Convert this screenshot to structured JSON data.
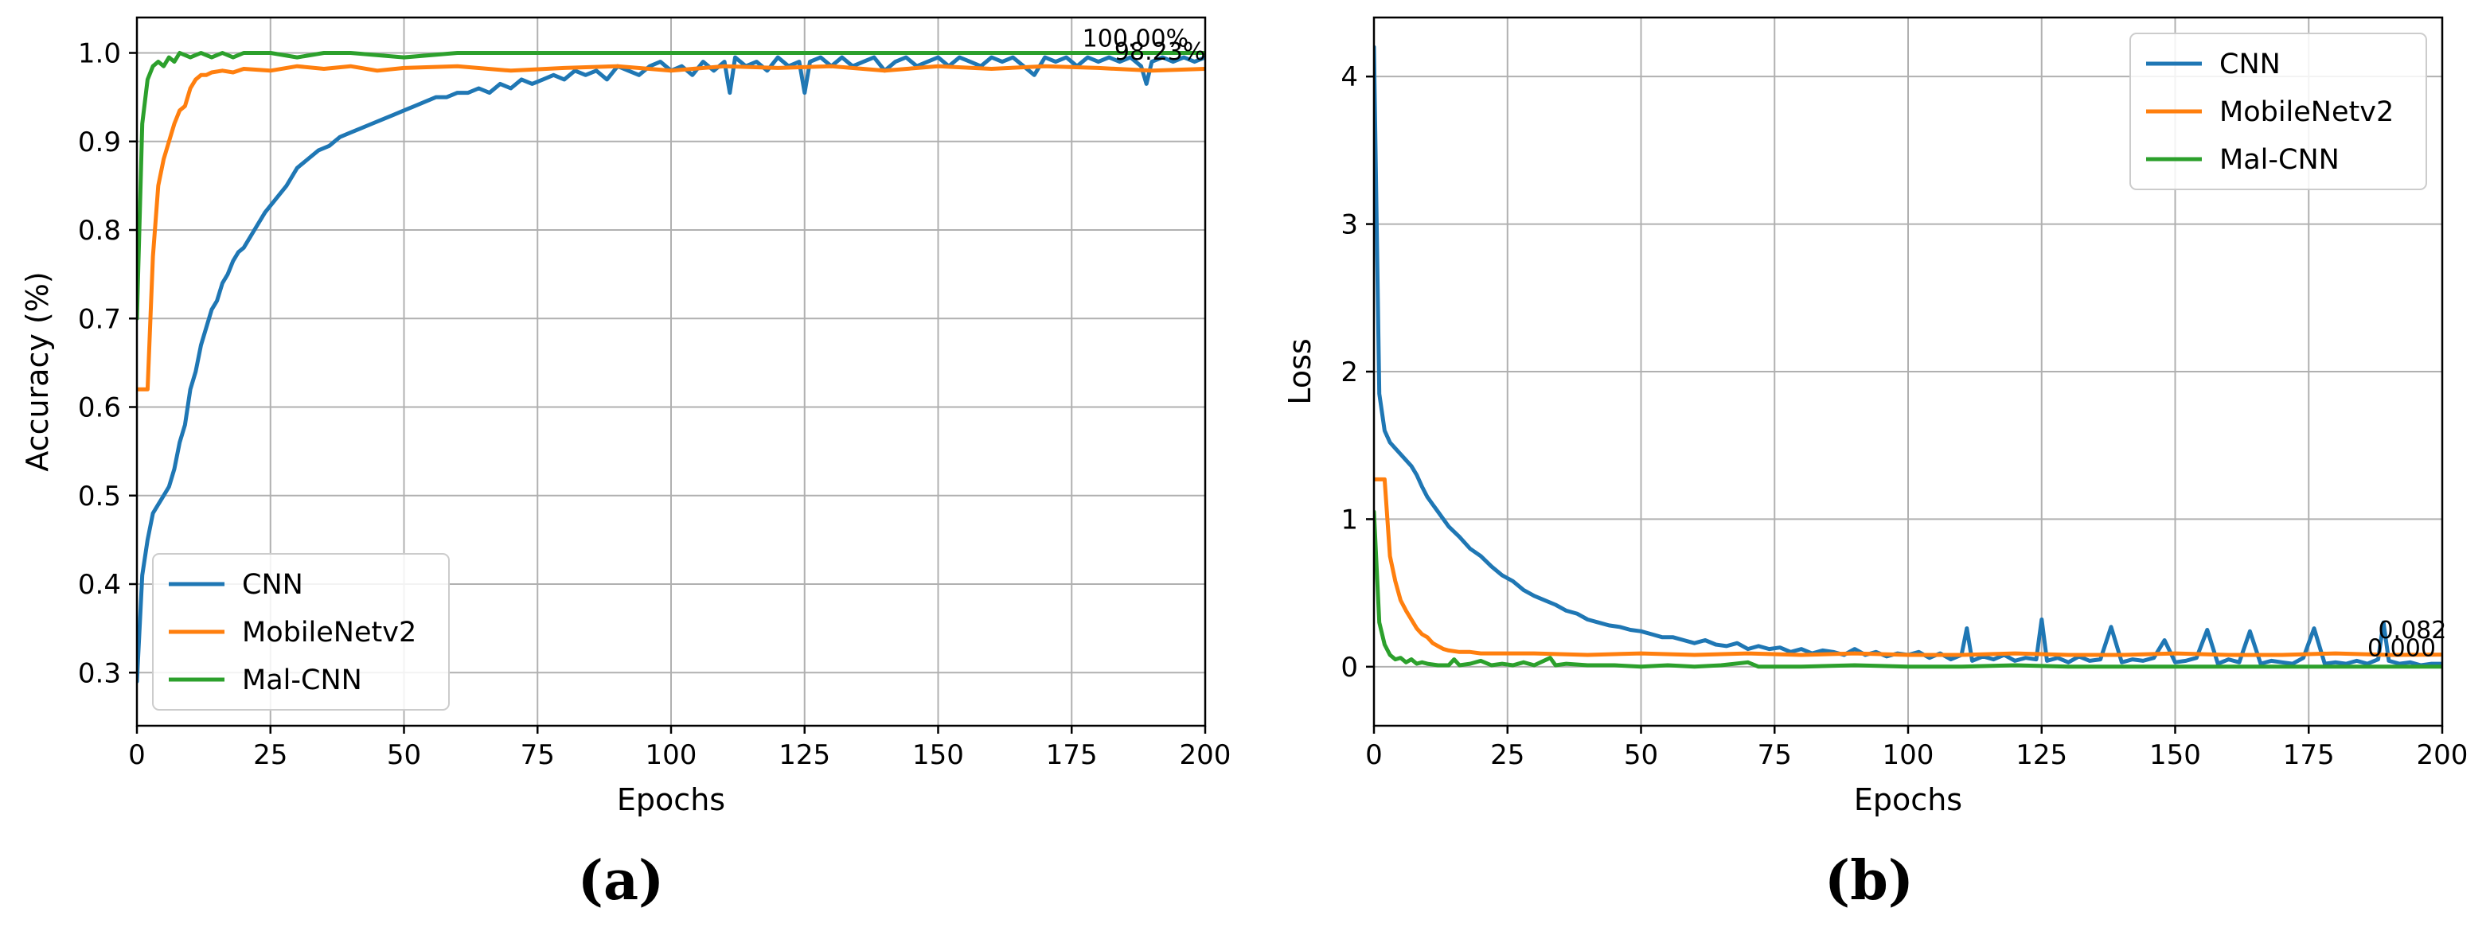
{
  "chart_data": [
    {
      "type": "line",
      "panel_label": "(a)",
      "xlabel": "Epochs",
      "ylabel": "Accuracy (%)",
      "xlim": [
        0,
        200
      ],
      "ylim": [
        0.24,
        1.04
      ],
      "xticks": [
        0,
        25,
        50,
        75,
        100,
        125,
        150,
        175,
        200
      ],
      "yticks": [
        0.3,
        0.4,
        0.5,
        0.6,
        0.7,
        0.8,
        0.9,
        1.0
      ],
      "ytick_labels": [
        "0.3",
        "0.4",
        "0.5",
        "0.6",
        "0.7",
        "0.8",
        "0.9",
        "1.0"
      ],
      "grid": true,
      "legend_position": "lower-left",
      "series": [
        {
          "name": "CNN",
          "color": "#1f77b4",
          "x": [
            0,
            1,
            2,
            3,
            4,
            5,
            6,
            7,
            8,
            9,
            10,
            11,
            12,
            13,
            14,
            15,
            16,
            17,
            18,
            19,
            20,
            22,
            24,
            26,
            28,
            30,
            32,
            34,
            36,
            38,
            40,
            42,
            44,
            46,
            48,
            50,
            52,
            54,
            56,
            58,
            60,
            62,
            64,
            66,
            68,
            70,
            72,
            74,
            76,
            78,
            80,
            82,
            84,
            86,
            88,
            90,
            92,
            94,
            96,
            98,
            100,
            102,
            104,
            106,
            108,
            110,
            111,
            112,
            114,
            116,
            118,
            120,
            122,
            124,
            125,
            126,
            128,
            130,
            132,
            134,
            136,
            138,
            140,
            142,
            144,
            146,
            148,
            150,
            152,
            154,
            156,
            158,
            160,
            162,
            164,
            166,
            168,
            170,
            172,
            174,
            176,
            178,
            180,
            182,
            184,
            186,
            188,
            189,
            190,
            192,
            194,
            196,
            198,
            200
          ],
          "y": [
            0.29,
            0.41,
            0.45,
            0.48,
            0.49,
            0.5,
            0.51,
            0.53,
            0.56,
            0.58,
            0.62,
            0.64,
            0.67,
            0.69,
            0.71,
            0.72,
            0.74,
            0.75,
            0.765,
            0.775,
            0.78,
            0.8,
            0.82,
            0.835,
            0.85,
            0.87,
            0.88,
            0.89,
            0.895,
            0.905,
            0.91,
            0.915,
            0.92,
            0.925,
            0.93,
            0.935,
            0.94,
            0.945,
            0.95,
            0.95,
            0.955,
            0.955,
            0.96,
            0.955,
            0.965,
            0.96,
            0.97,
            0.965,
            0.97,
            0.975,
            0.97,
            0.98,
            0.975,
            0.98,
            0.97,
            0.985,
            0.98,
            0.975,
            0.985,
            0.99,
            0.98,
            0.985,
            0.975,
            0.99,
            0.98,
            0.99,
            0.955,
            0.995,
            0.985,
            0.99,
            0.98,
            0.995,
            0.985,
            0.99,
            0.955,
            0.99,
            0.995,
            0.985,
            0.995,
            0.985,
            0.99,
            0.995,
            0.98,
            0.99,
            0.995,
            0.985,
            0.99,
            0.995,
            0.985,
            0.995,
            0.99,
            0.985,
            0.995,
            0.99,
            0.995,
            0.985,
            0.975,
            0.995,
            0.99,
            0.995,
            0.985,
            0.995,
            0.99,
            0.995,
            0.99,
            0.995,
            0.985,
            0.965,
            0.99,
            0.995,
            0.99,
            0.995,
            0.99,
            0.995
          ]
        },
        {
          "name": "MobileNetv2",
          "color": "#ff7f0e",
          "x": [
            0,
            2,
            3,
            4,
            5,
            6,
            7,
            8,
            9,
            10,
            11,
            12,
            13,
            14,
            16,
            18,
            20,
            25,
            30,
            35,
            40,
            45,
            50,
            60,
            70,
            80,
            90,
            100,
            110,
            120,
            130,
            140,
            150,
            160,
            170,
            180,
            190,
            200
          ],
          "y": [
            0.62,
            0.62,
            0.77,
            0.85,
            0.88,
            0.9,
            0.92,
            0.935,
            0.94,
            0.96,
            0.97,
            0.975,
            0.975,
            0.978,
            0.98,
            0.978,
            0.982,
            0.98,
            0.985,
            0.982,
            0.985,
            0.98,
            0.983,
            0.985,
            0.98,
            0.983,
            0.985,
            0.98,
            0.985,
            0.983,
            0.985,
            0.98,
            0.985,
            0.982,
            0.985,
            0.983,
            0.98,
            0.982
          ]
        },
        {
          "name": "Mal-CNN",
          "color": "#2ca02c",
          "x": [
            0,
            1,
            2,
            3,
            4,
            5,
            6,
            7,
            8,
            10,
            12,
            14,
            16,
            18,
            20,
            25,
            30,
            35,
            40,
            50,
            60,
            70,
            80,
            90,
            100,
            110,
            120,
            130,
            140,
            150,
            160,
            170,
            180,
            190,
            200
          ],
          "y": [
            0.7,
            0.92,
            0.97,
            0.985,
            0.99,
            0.985,
            0.995,
            0.99,
            1.0,
            0.995,
            1.0,
            0.995,
            1.0,
            0.995,
            1.0,
            1.0,
            0.995,
            1.0,
            1.0,
            0.995,
            1.0,
            1.0,
            1.0,
            1.0,
            1.0,
            1.0,
            1.0,
            1.0,
            1.0,
            1.0,
            1.0,
            1.0,
            1.0,
            1.0,
            1.0
          ]
        }
      ],
      "annotations": [
        {
          "text": "100.00%",
          "x": 177,
          "y": 1.0
        },
        {
          "text": "98.23%",
          "x": 183,
          "y": 0.985
        }
      ]
    },
    {
      "type": "line",
      "panel_label": "(b)",
      "xlabel": "Epochs",
      "ylabel": "Loss",
      "xlim": [
        0,
        200
      ],
      "ylim": [
        -0.4,
        4.4
      ],
      "xticks": [
        0,
        25,
        50,
        75,
        100,
        125,
        150,
        175,
        200
      ],
      "yticks": [
        0,
        1,
        2,
        3,
        4
      ],
      "ytick_labels": [
        "0",
        "1",
        "2",
        "3",
        "4"
      ],
      "grid": true,
      "legend_position": "upper-right",
      "series": [
        {
          "name": "CNN",
          "color": "#1f77b4",
          "x": [
            0,
            1,
            2,
            3,
            4,
            5,
            6,
            7,
            8,
            9,
            10,
            11,
            12,
            14,
            16,
            18,
            20,
            22,
            24,
            26,
            28,
            30,
            32,
            34,
            36,
            38,
            40,
            42,
            44,
            46,
            48,
            50,
            52,
            54,
            56,
            58,
            60,
            62,
            64,
            66,
            68,
            70,
            72,
            74,
            76,
            78,
            80,
            82,
            84,
            86,
            88,
            90,
            92,
            94,
            96,
            98,
            100,
            102,
            104,
            106,
            108,
            110,
            111,
            112,
            114,
            116,
            118,
            120,
            122,
            124,
            125,
            126,
            128,
            130,
            132,
            134,
            136,
            138,
            140,
            142,
            144,
            146,
            148,
            150,
            152,
            154,
            156,
            158,
            160,
            162,
            164,
            166,
            168,
            170,
            172,
            174,
            176,
            178,
            180,
            182,
            184,
            186,
            188,
            189,
            190,
            192,
            194,
            196,
            198,
            200
          ],
          "y": [
            4.2,
            1.85,
            1.6,
            1.52,
            1.48,
            1.44,
            1.4,
            1.36,
            1.3,
            1.22,
            1.15,
            1.1,
            1.05,
            0.95,
            0.88,
            0.8,
            0.75,
            0.68,
            0.62,
            0.58,
            0.52,
            0.48,
            0.45,
            0.42,
            0.38,
            0.36,
            0.32,
            0.3,
            0.28,
            0.27,
            0.25,
            0.24,
            0.22,
            0.2,
            0.2,
            0.18,
            0.16,
            0.18,
            0.15,
            0.14,
            0.16,
            0.12,
            0.14,
            0.12,
            0.13,
            0.1,
            0.12,
            0.09,
            0.11,
            0.1,
            0.08,
            0.12,
            0.08,
            0.1,
            0.07,
            0.09,
            0.08,
            0.1,
            0.06,
            0.09,
            0.05,
            0.08,
            0.26,
            0.04,
            0.07,
            0.05,
            0.08,
            0.04,
            0.06,
            0.05,
            0.32,
            0.04,
            0.06,
            0.03,
            0.07,
            0.04,
            0.05,
            0.27,
            0.03,
            0.05,
            0.04,
            0.06,
            0.18,
            0.03,
            0.04,
            0.06,
            0.25,
            0.02,
            0.05,
            0.03,
            0.24,
            0.02,
            0.04,
            0.03,
            0.02,
            0.06,
            0.26,
            0.02,
            0.03,
            0.02,
            0.04,
            0.02,
            0.05,
            0.3,
            0.04,
            0.02,
            0.03,
            0.01,
            0.02,
            0.02
          ]
        },
        {
          "name": "MobileNetv2",
          "color": "#ff7f0e",
          "x": [
            0,
            2,
            3,
            4,
            5,
            6,
            7,
            8,
            9,
            10,
            11,
            12,
            13,
            14,
            16,
            18,
            20,
            25,
            30,
            40,
            50,
            60,
            70,
            80,
            90,
            100,
            110,
            120,
            130,
            140,
            150,
            160,
            170,
            180,
            190,
            200
          ],
          "y": [
            1.27,
            1.27,
            0.75,
            0.58,
            0.45,
            0.38,
            0.32,
            0.26,
            0.22,
            0.2,
            0.16,
            0.14,
            0.12,
            0.11,
            0.1,
            0.1,
            0.09,
            0.09,
            0.09,
            0.08,
            0.09,
            0.08,
            0.09,
            0.08,
            0.09,
            0.08,
            0.08,
            0.09,
            0.08,
            0.08,
            0.09,
            0.08,
            0.08,
            0.09,
            0.08,
            0.082
          ]
        },
        {
          "name": "Mal-CNN",
          "color": "#2ca02c",
          "x": [
            0,
            1,
            2,
            3,
            4,
            5,
            6,
            7,
            8,
            9,
            10,
            12,
            14,
            15,
            16,
            18,
            20,
            22,
            24,
            26,
            28,
            30,
            33,
            34,
            36,
            40,
            45,
            50,
            55,
            60,
            65,
            70,
            72,
            80,
            90,
            100,
            110,
            120,
            130,
            140,
            150,
            160,
            170,
            180,
            190,
            200
          ],
          "y": [
            1.05,
            0.3,
            0.15,
            0.08,
            0.05,
            0.06,
            0.03,
            0.05,
            0.02,
            0.03,
            0.02,
            0.01,
            0.01,
            0.05,
            0.01,
            0.02,
            0.04,
            0.01,
            0.02,
            0.01,
            0.03,
            0.01,
            0.06,
            0.01,
            0.02,
            0.01,
            0.01,
            0.0,
            0.01,
            0.0,
            0.01,
            0.03,
            0.0,
            0.0,
            0.01,
            0.0,
            0.0,
            0.01,
            0.0,
            0.0,
            0.0,
            0.0,
            0.0,
            0.0,
            0.0,
            0.0
          ]
        }
      ],
      "annotations": [
        {
          "text": "0.082",
          "x": 188,
          "y": 0.15
        },
        {
          "text": "0.000",
          "x": 186,
          "y": 0.03
        }
      ]
    }
  ]
}
